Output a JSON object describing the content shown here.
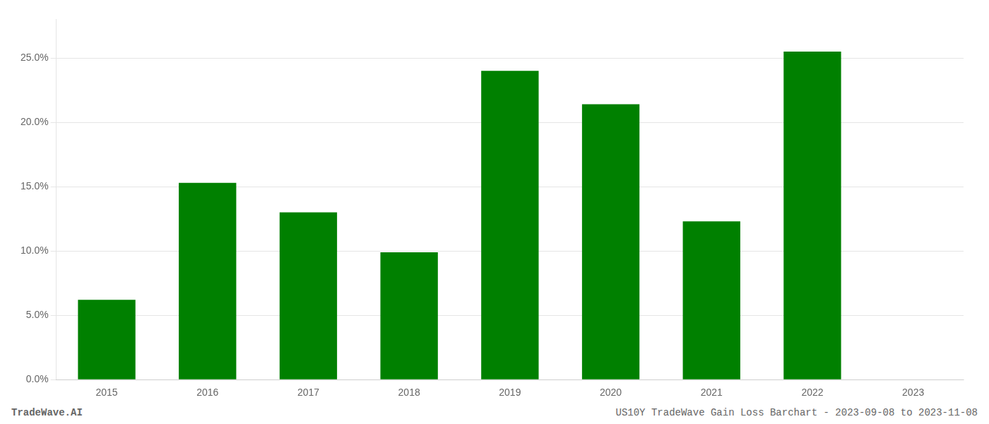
{
  "chart_data": {
    "type": "bar",
    "title": "US10Y TradeWave Gain Loss Barchart - 2023-09-08 to 2023-11-08",
    "annotations": [
      "TradeWave.AI"
    ],
    "categories": [
      "2015",
      "2016",
      "2017",
      "2018",
      "2019",
      "2020",
      "2021",
      "2022",
      "2023"
    ],
    "values": [
      0.062,
      0.153,
      0.13,
      0.099,
      0.24,
      0.214,
      0.123,
      0.255,
      null
    ],
    "color": "#008000",
    "ylim": [
      0,
      0.28
    ],
    "yticks": [
      {
        "value": 0.0,
        "label": "0.0%"
      },
      {
        "value": 0.05,
        "label": "5.0%"
      },
      {
        "value": 0.1,
        "label": "10.0%"
      },
      {
        "value": 0.15,
        "label": "15.0%"
      },
      {
        "value": 0.2,
        "label": "20.0%"
      },
      {
        "value": 0.25,
        "label": "25.0%"
      }
    ],
    "grid": true
  }
}
